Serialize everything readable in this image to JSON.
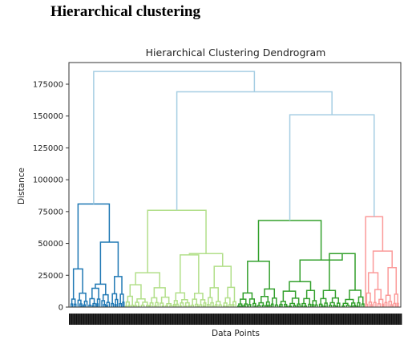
{
  "page": {
    "heading": "Hierarchical clustering"
  },
  "chart_data": {
    "type": "dendrogram",
    "title": "Hierarchical Clustering Dendrogram",
    "xlabel": "Data Points",
    "ylabel": "Distance",
    "ylim": [
      0,
      192000
    ],
    "yticks": [
      0,
      25000,
      50000,
      75000,
      100000,
      125000,
      150000,
      175000
    ],
    "grid": false,
    "x_tick_labels_visible": "illegible (overlapping sample labels)",
    "colors": {
      "above_threshold": "#a6cee3",
      "cluster_1": "#1f78b4",
      "cluster_2": "#b2df8a",
      "cluster_3": "#33a02c",
      "cluster_4": "#fb9a99"
    },
    "clusters": [
      {
        "color": "#1f78b4",
        "x_range": [
          2,
          70
        ],
        "top_merge_height": 81000
      },
      {
        "color": "#b2df8a",
        "x_range": [
          70,
          210
        ],
        "top_merge_height": 76000
      },
      {
        "color": "#33a02c",
        "x_range": [
          210,
          370
        ],
        "top_merge_height": 68000
      },
      {
        "color": "#fb9a99",
        "x_range": [
          370,
          413
        ],
        "top_merge_height": 71000
      }
    ],
    "top_merges": [
      {
        "height": 151000,
        "joins": "cluster_3 + cluster_4"
      },
      {
        "height": 169000,
        "joins": "cluster_2 + (cluster_3, cluster_4)"
      },
      {
        "height": 185000,
        "joins": "cluster_1 + rest"
      }
    ]
  }
}
